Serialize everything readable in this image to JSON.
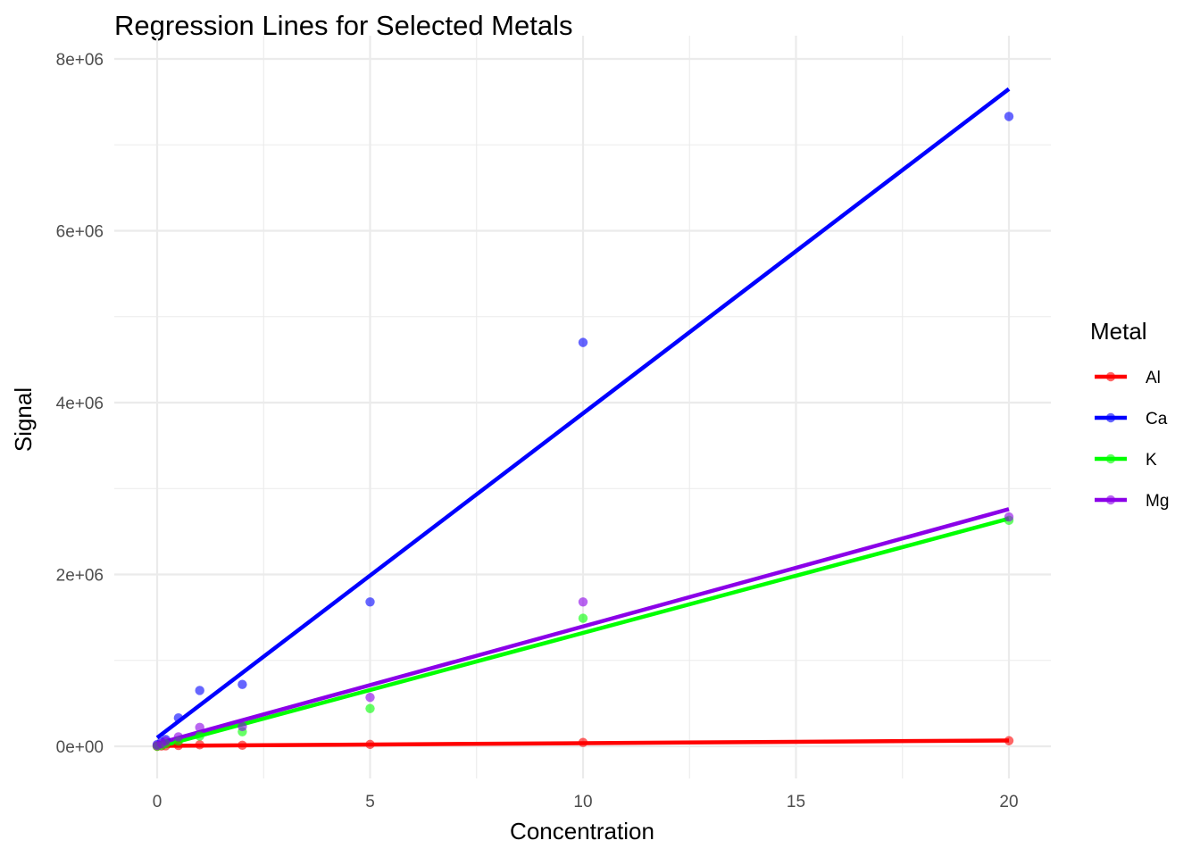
{
  "chart_data": {
    "type": "scatter",
    "title": "Regression Lines for Selected Metals",
    "xlabel": "Concentration",
    "ylabel": "Signal",
    "xlim": [
      0,
      20
    ],
    "ylim": [
      0,
      8000000
    ],
    "x_ticks": [
      0,
      5,
      10,
      15,
      20
    ],
    "x_tick_labels": [
      "0",
      "5",
      "10",
      "15",
      "20"
    ],
    "y_ticks": [
      0,
      2000000,
      4000000,
      6000000,
      8000000
    ],
    "y_tick_labels": [
      "0e+00",
      "2e+06",
      "4e+06",
      "6e+06",
      "8e+06"
    ],
    "grid": true,
    "legend": {
      "title": "Metal",
      "placement": "right"
    },
    "series": [
      {
        "name": "Al",
        "color": "#ff0000",
        "points": [
          [
            0,
            0
          ],
          [
            0.1,
            3000
          ],
          [
            0.2,
            6000
          ],
          [
            0.5,
            10000
          ],
          [
            1,
            18000
          ],
          [
            2,
            12000
          ],
          [
            5,
            22000
          ],
          [
            10,
            45000
          ],
          [
            20,
            65000
          ]
        ],
        "fit": [
          [
            0,
            5000
          ],
          [
            20,
            68000
          ]
        ]
      },
      {
        "name": "Ca",
        "color": "#0000ff",
        "points": [
          [
            0,
            20000
          ],
          [
            0.1,
            50000
          ],
          [
            0.2,
            80000
          ],
          [
            0.5,
            330000
          ],
          [
            1,
            650000
          ],
          [
            2,
            720000
          ],
          [
            5,
            1680000
          ],
          [
            10,
            4700000
          ],
          [
            20,
            7330000
          ]
        ],
        "fit": [
          [
            0,
            100000
          ],
          [
            20,
            7650000
          ]
        ]
      },
      {
        "name": "K",
        "color": "#00ff00",
        "points": [
          [
            0,
            0
          ],
          [
            0.1,
            10000
          ],
          [
            0.2,
            30000
          ],
          [
            0.5,
            60000
          ],
          [
            1,
            120000
          ],
          [
            2,
            170000
          ],
          [
            5,
            440000
          ],
          [
            10,
            1490000
          ],
          [
            20,
            2630000
          ]
        ],
        "fit": [
          [
            0,
            -10000
          ],
          [
            20,
            2650000
          ]
        ]
      },
      {
        "name": "Mg",
        "color": "#8b00e8",
        "points": [
          [
            0,
            10000
          ],
          [
            0.1,
            30000
          ],
          [
            0.2,
            60000
          ],
          [
            0.5,
            110000
          ],
          [
            1,
            220000
          ],
          [
            2,
            230000
          ],
          [
            5,
            570000
          ],
          [
            10,
            1680000
          ],
          [
            20,
            2670000
          ]
        ],
        "fit": [
          [
            0,
            30000
          ],
          [
            20,
            2760000
          ]
        ]
      }
    ]
  }
}
